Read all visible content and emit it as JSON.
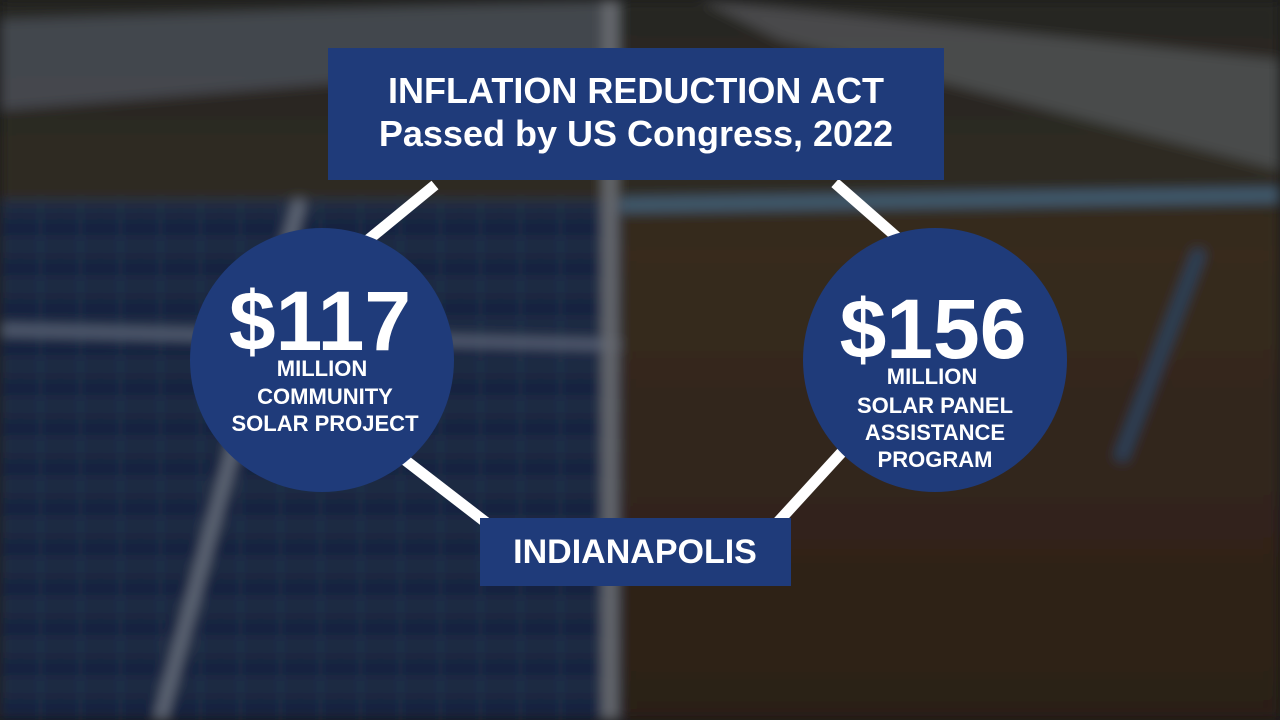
{
  "header": {
    "title": "INFLATION REDUCTION ACT",
    "subtitle": "Passed by US Congress, 2022"
  },
  "circles": [
    {
      "amount": "$117",
      "unit": "MILLION",
      "description": [
        "COMMUNITY",
        "SOLAR PROJECT"
      ]
    },
    {
      "amount": "$156",
      "unit": "MILLION",
      "description": [
        "SOLAR PANEL",
        "ASSISTANCE",
        "PROGRAM"
      ]
    }
  ],
  "location": "INDIANAPOLIS"
}
